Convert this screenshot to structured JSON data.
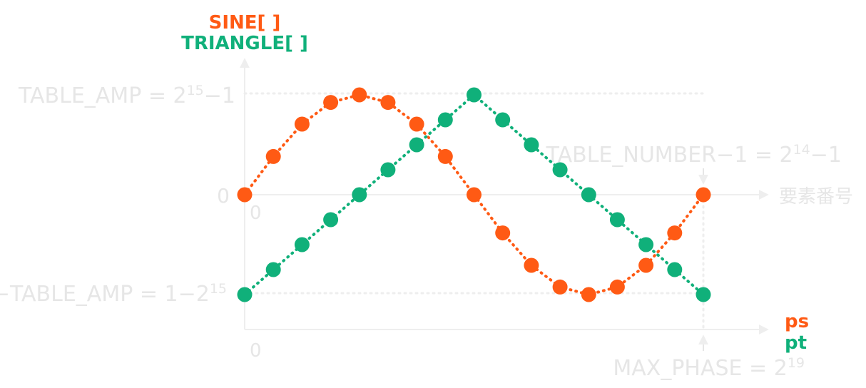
{
  "colors": {
    "sine": "#ff5a14",
    "triangle": "#10b07a",
    "faint": "#e6e6e6",
    "axis": "#eeeeee"
  },
  "titles": {
    "sine": "SINE[ ]",
    "triangle": "TRIANGLE[ ]"
  },
  "labels": {
    "table_amp_prefix": "TABLE_AMP = 2",
    "table_amp_exp": "15",
    "table_amp_suffix": "−1",
    "neg_table_amp_prefix": "−TABLE_AMP = 1−2",
    "neg_table_amp_exp": "15",
    "zero_left": "0",
    "zero_inner": "0",
    "zero_bottom": "0",
    "table_number_prefix": "TABLE_NUMBER−1 = 2",
    "table_number_exp": "14",
    "table_number_suffix": "−1",
    "element_index": "要素番号",
    "max_phase_prefix": "MAX_PHASE = 2",
    "max_phase_exp": "19",
    "ps": "ps",
    "pt": "pt"
  },
  "chart_data": {
    "type": "scatter",
    "x": [
      0,
      1,
      2,
      3,
      4,
      5,
      6,
      7,
      8,
      9,
      10,
      11,
      12,
      13,
      14,
      15,
      16
    ],
    "xlim": [
      0,
      16
    ],
    "ylim": [
      -1,
      1
    ],
    "grid": false,
    "series": [
      {
        "name": "SINE[ ]",
        "values": [
          0,
          0.383,
          0.707,
          0.924,
          1,
          0.924,
          0.707,
          0.383,
          0,
          -0.383,
          -0.707,
          -0.924,
          -1,
          -0.924,
          -0.707,
          -0.383,
          0
        ]
      },
      {
        "name": "TRIANGLE[ ]",
        "values": [
          -1,
          -0.75,
          -0.5,
          -0.25,
          0,
          0.25,
          0.5,
          0.75,
          1,
          0.75,
          0.5,
          0.25,
          0,
          -0.25,
          -0.5,
          -0.75,
          -1
        ]
      }
    ]
  }
}
